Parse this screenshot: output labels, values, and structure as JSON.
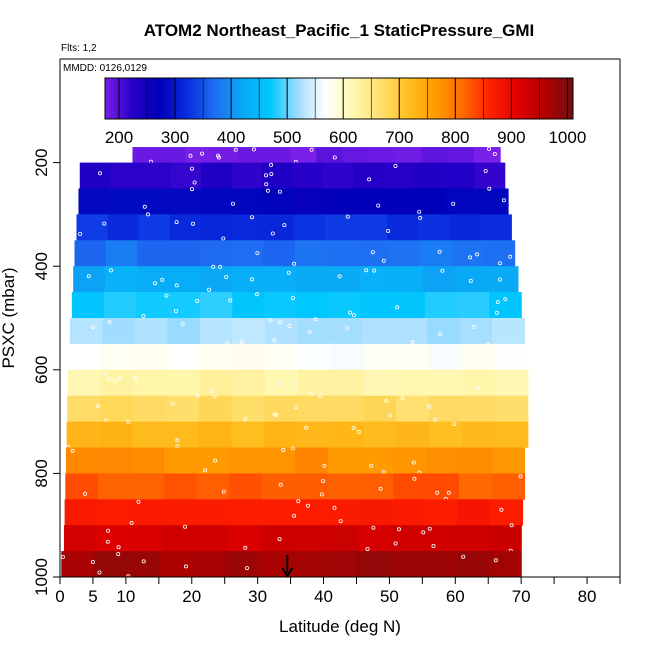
{
  "chart_data": {
    "type": "heatmap",
    "title": "ATOM2 Northeast_Pacific_1 StaticPressure_GMI",
    "flights_note": "Flts: 1,2",
    "dates_note": "MMDD: 0126,0129",
    "xlabel": "Latitude (deg N)",
    "ylabel": "PSXC (mbar)",
    "xlim": [
      0,
      85
    ],
    "ylim": [
      1000,
      0
    ],
    "x_ticks": [
      0,
      5,
      10,
      20,
      30,
      40,
      50,
      60,
      70,
      80
    ],
    "y_ticks": [
      200,
      400,
      600,
      800,
      1000
    ],
    "colorbar": {
      "range": [
        175,
        1010
      ],
      "ticks": [
        200,
        300,
        400,
        500,
        600,
        700,
        800,
        900,
        1000
      ],
      "colors": [
        "#7a1fe8",
        "#2600c8",
        "#0000b8",
        "#0a2ee0",
        "#1f6ef2",
        "#0aa8f5",
        "#00c8ff",
        "#9fdcff",
        "#ffffff",
        "#fff8b0",
        "#ffe070",
        "#ffc020",
        "#ff9a00",
        "#ff6a00",
        "#ff2000",
        "#e00000",
        "#b00000",
        "#701010"
      ]
    },
    "bands": [
      {
        "p_top": 170,
        "p_bot": 200,
        "lat_min": 11,
        "lat_max": 66.8,
        "value": 185
      },
      {
        "p_top": 200,
        "p_bot": 250,
        "lat_min": 3,
        "lat_max": 67.5,
        "value": 225
      },
      {
        "p_top": 250,
        "p_bot": 300,
        "lat_min": 2.8,
        "lat_max": 68,
        "value": 275
      },
      {
        "p_top": 300,
        "p_bot": 350,
        "lat_min": 2.5,
        "lat_max": 68.5,
        "value": 325
      },
      {
        "p_top": 350,
        "p_bot": 400,
        "lat_min": 2.2,
        "lat_max": 69,
        "value": 375
      },
      {
        "p_top": 400,
        "p_bot": 450,
        "lat_min": 2,
        "lat_max": 69.5,
        "value": 425
      },
      {
        "p_top": 450,
        "p_bot": 500,
        "lat_min": 1.8,
        "lat_max": 70,
        "value": 475
      },
      {
        "p_top": 500,
        "p_bot": 550,
        "lat_min": 1.5,
        "lat_max": 70.5,
        "value": 525
      },
      {
        "p_top": 550,
        "p_bot": 600,
        "lat_min": 1.3,
        "lat_max": 71,
        "value": 575
      },
      {
        "p_top": 600,
        "p_bot": 650,
        "lat_min": 1.2,
        "lat_max": 71,
        "value": 625
      },
      {
        "p_top": 650,
        "p_bot": 700,
        "lat_min": 1.1,
        "lat_max": 71,
        "value": 675
      },
      {
        "p_top": 700,
        "p_bot": 750,
        "lat_min": 1,
        "lat_max": 71,
        "value": 725
      },
      {
        "p_top": 750,
        "p_bot": 800,
        "lat_min": 0.9,
        "lat_max": 70.5,
        "value": 775
      },
      {
        "p_top": 800,
        "p_bot": 850,
        "lat_min": 0.8,
        "lat_max": 70.5,
        "value": 825
      },
      {
        "p_top": 850,
        "p_bot": 900,
        "lat_min": 0.7,
        "lat_max": 70.2,
        "value": 875
      },
      {
        "p_top": 900,
        "p_bot": 950,
        "lat_min": 0.6,
        "lat_max": 70,
        "value": 925
      },
      {
        "p_top": 950,
        "p_bot": 1000,
        "lat_min": 0.2,
        "lat_max": 70,
        "value": 975
      }
    ],
    "marker": {
      "lat": 34.5,
      "label": "arrow"
    }
  }
}
